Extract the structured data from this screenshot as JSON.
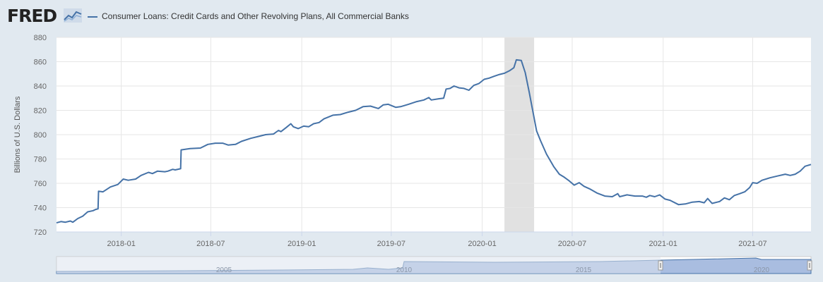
{
  "header": {
    "logo": "FRED",
    "legend_label": "Consumer Loans: Credit Cards and Other Revolving Plans, All Commercial Banks",
    "icons": [
      "fred-logo-graph-icon"
    ]
  },
  "colors": {
    "series": "#4572a7",
    "recession": "#e1e1e1",
    "navigator_fill": "#a9bde0",
    "navigator_mask": "#dce4ef",
    "background": "#e1e9f0"
  },
  "chart_data": {
    "type": "line",
    "ylabel": "Billions of U.S. Dollars",
    "ylim": [
      720,
      880
    ],
    "yticks": [
      "720",
      "740",
      "760",
      "780",
      "800",
      "820",
      "840",
      "860",
      "880"
    ],
    "xlim": [
      "2017-08-23",
      "2021-10-27"
    ],
    "xticks": [
      {
        "date": "2018-01-01",
        "label": "2018-01"
      },
      {
        "date": "2018-07-01",
        "label": "2018-07"
      },
      {
        "date": "2019-01-01",
        "label": "2019-01"
      },
      {
        "date": "2019-07-01",
        "label": "2019-07"
      },
      {
        "date": "2020-01-01",
        "label": "2020-01"
      },
      {
        "date": "2020-07-01",
        "label": "2020-07"
      },
      {
        "date": "2021-01-01",
        "label": "2021-01"
      },
      {
        "date": "2021-07-01",
        "label": "2021-07"
      }
    ],
    "grid": true,
    "recession": [
      "2020-02-15",
      "2020-04-15"
    ],
    "series": [
      {
        "points": [
          [
            "2017-08-23",
            727.5
          ],
          [
            "2017-09-01",
            728.5
          ],
          [
            "2017-09-10",
            728.0
          ],
          [
            "2017-09-20",
            729.0
          ],
          [
            "2017-09-25",
            728.0
          ],
          [
            "2017-10-05",
            731.0
          ],
          [
            "2017-10-15",
            733.0
          ],
          [
            "2017-10-25",
            736.5
          ],
          [
            "2017-11-05",
            737.5
          ],
          [
            "2017-11-10",
            738.5
          ],
          [
            "2017-11-15",
            739.0
          ],
          [
            "2017-11-16",
            753.5
          ],
          [
            "2017-11-25",
            753.0
          ],
          [
            "2017-12-10",
            757.0
          ],
          [
            "2017-12-25",
            759.0
          ],
          [
            "2018-01-05",
            763.5
          ],
          [
            "2018-01-15",
            762.5
          ],
          [
            "2018-01-30",
            763.5
          ],
          [
            "2018-02-10",
            766.5
          ],
          [
            "2018-02-25",
            769.0
          ],
          [
            "2018-03-05",
            768.0
          ],
          [
            "2018-03-15",
            770.0
          ],
          [
            "2018-03-30",
            769.5
          ],
          [
            "2018-04-05",
            770.0
          ],
          [
            "2018-04-15",
            771.5
          ],
          [
            "2018-04-20",
            771.0
          ],
          [
            "2018-05-01",
            772.0
          ],
          [
            "2018-05-02",
            787.5
          ],
          [
            "2018-05-20",
            788.5
          ],
          [
            "2018-06-10",
            789.0
          ],
          [
            "2018-06-25",
            792.0
          ],
          [
            "2018-07-10",
            793.0
          ],
          [
            "2018-07-25",
            793.0
          ],
          [
            "2018-08-05",
            791.5
          ],
          [
            "2018-08-20",
            792.0
          ],
          [
            "2018-09-01",
            794.5
          ],
          [
            "2018-09-20",
            797.0
          ],
          [
            "2018-10-05",
            798.5
          ],
          [
            "2018-10-20",
            800.0
          ],
          [
            "2018-11-05",
            800.5
          ],
          [
            "2018-11-15",
            803.5
          ],
          [
            "2018-11-20",
            802.5
          ],
          [
            "2018-12-01",
            806.0
          ],
          [
            "2018-12-10",
            809.0
          ],
          [
            "2018-12-15",
            806.5
          ],
          [
            "2018-12-25",
            805.0
          ],
          [
            "2019-01-05",
            807.0
          ],
          [
            "2019-01-15",
            806.5
          ],
          [
            "2019-01-25",
            809.0
          ],
          [
            "2019-02-05",
            810.0
          ],
          [
            "2019-02-15",
            813.0
          ],
          [
            "2019-03-05",
            816.0
          ],
          [
            "2019-03-20",
            816.5
          ],
          [
            "2019-04-05",
            818.5
          ],
          [
            "2019-04-20",
            820.0
          ],
          [
            "2019-05-05",
            823.0
          ],
          [
            "2019-05-20",
            823.5
          ],
          [
            "2019-06-05",
            821.5
          ],
          [
            "2019-06-15",
            824.5
          ],
          [
            "2019-06-25",
            825.0
          ],
          [
            "2019-07-10",
            822.5
          ],
          [
            "2019-07-20",
            823.0
          ],
          [
            "2019-08-05",
            825.0
          ],
          [
            "2019-08-20",
            827.0
          ],
          [
            "2019-09-05",
            828.5
          ],
          [
            "2019-09-15",
            830.5
          ],
          [
            "2019-09-20",
            828.5
          ],
          [
            "2019-10-05",
            829.5
          ],
          [
            "2019-10-15",
            830.0
          ],
          [
            "2019-10-20",
            837.5
          ],
          [
            "2019-10-28",
            838.0
          ],
          [
            "2019-11-05",
            840.0
          ],
          [
            "2019-11-15",
            838.5
          ],
          [
            "2019-11-25",
            838.0
          ],
          [
            "2019-12-05",
            836.5
          ],
          [
            "2019-12-15",
            840.5
          ],
          [
            "2019-12-25",
            842.0
          ],
          [
            "2020-01-05",
            845.5
          ],
          [
            "2020-01-15",
            846.5
          ],
          [
            "2020-01-25",
            848.0
          ],
          [
            "2020-02-05",
            849.5
          ],
          [
            "2020-02-15",
            850.5
          ],
          [
            "2020-02-25",
            852.5
          ],
          [
            "2020-03-05",
            855.0
          ],
          [
            "2020-03-10",
            861.5
          ],
          [
            "2020-03-20",
            861.0
          ],
          [
            "2020-03-28",
            851.0
          ],
          [
            "2020-04-05",
            835.0
          ],
          [
            "2020-04-12",
            820.0
          ],
          [
            "2020-04-20",
            803.0
          ],
          [
            "2020-04-28",
            795.0
          ],
          [
            "2020-05-10",
            784.0
          ],
          [
            "2020-05-25",
            773.5
          ],
          [
            "2020-06-05",
            767.5
          ],
          [
            "2020-06-15",
            765.0
          ],
          [
            "2020-06-25",
            762.0
          ],
          [
            "2020-07-05",
            758.5
          ],
          [
            "2020-07-15",
            760.5
          ],
          [
            "2020-07-25",
            757.5
          ],
          [
            "2020-08-05",
            755.5
          ],
          [
            "2020-08-20",
            752.0
          ],
          [
            "2020-09-05",
            749.5
          ],
          [
            "2020-09-20",
            749.0
          ],
          [
            "2020-10-01",
            751.5
          ],
          [
            "2020-10-05",
            749.0
          ],
          [
            "2020-10-20",
            750.5
          ],
          [
            "2020-11-05",
            749.5
          ],
          [
            "2020-11-20",
            749.5
          ],
          [
            "2020-11-28",
            748.5
          ],
          [
            "2020-12-05",
            750.0
          ],
          [
            "2020-12-15",
            749.0
          ],
          [
            "2020-12-25",
            750.5
          ],
          [
            "2021-01-05",
            747.0
          ],
          [
            "2021-01-15",
            746.0
          ],
          [
            "2021-02-01",
            742.5
          ],
          [
            "2021-02-15",
            743.0
          ],
          [
            "2021-03-01",
            744.5
          ],
          [
            "2021-03-15",
            745.0
          ],
          [
            "2021-03-25",
            744.0
          ],
          [
            "2021-04-01",
            747.5
          ],
          [
            "2021-04-10",
            743.5
          ],
          [
            "2021-04-25",
            745.0
          ],
          [
            "2021-05-05",
            748.0
          ],
          [
            "2021-05-15",
            746.5
          ],
          [
            "2021-05-25",
            750.0
          ],
          [
            "2021-06-05",
            751.5
          ],
          [
            "2021-06-15",
            753.0
          ],
          [
            "2021-06-25",
            756.5
          ],
          [
            "2021-07-01",
            760.5
          ],
          [
            "2021-07-10",
            760.0
          ],
          [
            "2021-07-20",
            762.5
          ],
          [
            "2021-08-05",
            764.5
          ],
          [
            "2021-08-20",
            766.0
          ],
          [
            "2021-09-05",
            767.5
          ],
          [
            "2021-09-15",
            766.5
          ],
          [
            "2021-09-25",
            767.5
          ],
          [
            "2021-10-05",
            770.0
          ],
          [
            "2021-10-15",
            774.0
          ],
          [
            "2021-10-27",
            775.5
          ]
        ]
      }
    ],
    "navigator": {
      "tick_labels": [
        "2005",
        "2010",
        "2015",
        "2020"
      ]
    }
  }
}
